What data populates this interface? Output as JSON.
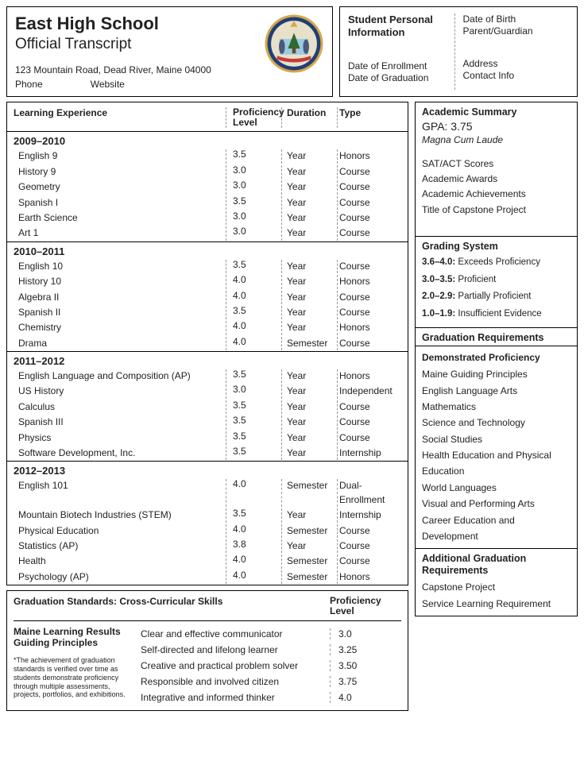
{
  "header": {
    "school_name": "East High School",
    "subtitle": "Official Transcript",
    "address": "123 Mountain Road, Dead River, Maine 04000",
    "phone_label": "Phone",
    "website_label": "Website",
    "seal_colors": {
      "ring_outer": "#d6a84a",
      "ring_inner": "#1f3f77",
      "band": "#c63a3a",
      "field": "#e8e1c9",
      "tree": "#2c6b2f",
      "sky": "#9ec9e2"
    }
  },
  "student": {
    "title": "Student Personal Information",
    "left_fields": [
      "Date of Enrollment",
      "Date of Graduation"
    ],
    "right_fields_top": [
      "Date of Birth",
      "Parent/Guardian"
    ],
    "right_fields_bottom": [
      "Address",
      "Contact Info"
    ]
  },
  "transcript": {
    "columns": {
      "exp": "Learning Experience",
      "prof": "Proficiency Level",
      "dur": "Duration",
      "type": "Type"
    },
    "years": [
      {
        "label": "2009–2010",
        "rows": [
          {
            "exp": "English 9",
            "prof": "3.5",
            "dur": "Year",
            "type": "Honors"
          },
          {
            "exp": "History 9",
            "prof": "3.0",
            "dur": "Year",
            "type": "Course"
          },
          {
            "exp": "Geometry",
            "prof": "3.0",
            "dur": "Year",
            "type": "Course"
          },
          {
            "exp": "Spanish I",
            "prof": "3.5",
            "dur": "Year",
            "type": "Course"
          },
          {
            "exp": "Earth Science",
            "prof": "3.0",
            "dur": "Year",
            "type": "Course"
          },
          {
            "exp": "Art 1",
            "prof": "3.0",
            "dur": "Year",
            "type": "Course"
          }
        ]
      },
      {
        "label": "2010–2011",
        "rows": [
          {
            "exp": "English 10",
            "prof": "3.5",
            "dur": "Year",
            "type": "Course"
          },
          {
            "exp": "History 10",
            "prof": "4.0",
            "dur": "Year",
            "type": "Honors"
          },
          {
            "exp": "Algebra II",
            "prof": "4.0",
            "dur": "Year",
            "type": "Course"
          },
          {
            "exp": "Spanish II",
            "prof": "3.5",
            "dur": "Year",
            "type": "Course"
          },
          {
            "exp": "Chemistry",
            "prof": "4.0",
            "dur": "Year",
            "type": "Honors"
          },
          {
            "exp": "Drama",
            "prof": "4.0",
            "dur": "Semester",
            "type": "Course"
          }
        ]
      },
      {
        "label": "2011–2012",
        "rows": [
          {
            "exp": "English Language and Composition (AP)",
            "prof": "3.5",
            "dur": "Year",
            "type": "Honors"
          },
          {
            "exp": "US History",
            "prof": "3.0",
            "dur": "Year",
            "type": "Independent"
          },
          {
            "exp": "Calculus",
            "prof": "3.5",
            "dur": "Year",
            "type": "Course"
          },
          {
            "exp": "Spanish III",
            "prof": "3.5",
            "dur": "Year",
            "type": "Course"
          },
          {
            "exp": "Physics",
            "prof": "3.5",
            "dur": "Year",
            "type": "Course"
          },
          {
            "exp": "Software Development, Inc.",
            "prof": "3.5",
            "dur": "Year",
            "type": "Internship"
          }
        ]
      },
      {
        "label": "2012–2013",
        "rows": [
          {
            "exp": "English 101",
            "prof": "4.0",
            "dur": "Semester",
            "type": "Dual-Enrollment"
          },
          {
            "exp": "Mountain Biotech Industries (STEM)",
            "prof": "3.5",
            "dur": "Year",
            "type": "Internship"
          },
          {
            "exp": "Physical Education",
            "prof": "4.0",
            "dur": "Semester",
            "type": "Course"
          },
          {
            "exp": "Statistics (AP)",
            "prof": "3.8",
            "dur": "Year",
            "type": "Course"
          },
          {
            "exp": "Health",
            "prof": "4.0",
            "dur": "Semester",
            "type": "Course"
          },
          {
            "exp": "Psychology (AP)",
            "prof": "4.0",
            "dur": "Semester",
            "type": "Honors"
          }
        ]
      }
    ]
  },
  "grad_standards": {
    "title": "Graduation Standards: Cross-Curricular Skills",
    "prof_label": "Proficiency Level",
    "left_title": "Maine Learning Results Guiding Principles",
    "note": "*The achievement of graduation standards is verified over time as students demonstrate proficiency through multiple assessments, projects, portfolios, and exhibitions.",
    "rows": [
      {
        "skill": "Clear and effective communicator",
        "prof": "3.0"
      },
      {
        "skill": "Self-directed and lifelong learner",
        "prof": "3.25"
      },
      {
        "skill": "Creative and practical problem solver",
        "prof": "3.50"
      },
      {
        "skill": "Responsible and involved citizen",
        "prof": "3.75"
      },
      {
        "skill": "Integrative and informed thinker",
        "prof": "4.0"
      }
    ]
  },
  "summary": {
    "title": "Academic Summary",
    "gpa_label": "GPA: 3.75",
    "honor": "Magna Cum Laude",
    "lines": [
      "SAT/ACT Scores",
      "Academic Awards",
      "Academic Achievements",
      "Title of Capstone Project"
    ]
  },
  "grading": {
    "title": "Grading System",
    "rows": [
      {
        "range": "3.6–4.0:",
        "label": "Exceeds Proficiency"
      },
      {
        "range": "3.0–3.5:",
        "label": "Proficient"
      },
      {
        "range": "2.0–2.9:",
        "label": "Partially Proficient"
      },
      {
        "range": "1.0–1.9:",
        "label": "Insufficient Evidence"
      }
    ]
  },
  "requirements": {
    "title": "Graduation Requirements",
    "dp_title": "Demonstrated Proficiency",
    "dp_lines": [
      "Maine Guiding Principles",
      "English Language Arts",
      "Mathematics",
      "Science and Technology",
      "Social Studies",
      "Health Education and Physical Education",
      "World Languages",
      "Visual and Performing Arts",
      "Career Education and Development"
    ]
  },
  "additional": {
    "title": "Additional Graduation Requirements",
    "lines": [
      "Capstone Project",
      "Service Learning Requirement"
    ]
  }
}
